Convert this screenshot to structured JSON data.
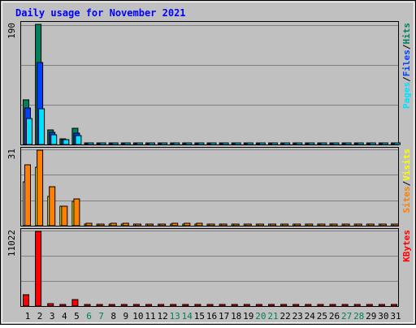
{
  "title": "Daily usage for November 2021",
  "colors": {
    "hits": "#00805c",
    "files": "#0040ff",
    "pages": "#00e0ff",
    "visits": "#ffff00",
    "sites": "#ff8000",
    "kbytes": "#ff0000",
    "weekend": "#00805c",
    "title": "#0000ff",
    "panel_bg": "#c0c0c0"
  },
  "chart_data": [
    {
      "type": "bar",
      "panel": "hits-files-pages",
      "ymax_label": "190",
      "ylim": [
        0,
        190
      ],
      "legend": [
        {
          "text": "Pages",
          "color_key": "pages"
        },
        {
          "text": "/",
          "color_key": "sep"
        },
        {
          "text": "Files",
          "color_key": "files"
        },
        {
          "text": "/",
          "color_key": "sep"
        },
        {
          "text": "Hits",
          "color_key": "hits"
        }
      ],
      "categories": [
        "1",
        "2",
        "3",
        "4",
        "5",
        "6",
        "7",
        "8",
        "9",
        "10",
        "11",
        "12",
        "13",
        "14",
        "15",
        "16",
        "17",
        "18",
        "19",
        "20",
        "21",
        "22",
        "23",
        "24",
        "25",
        "26",
        "27",
        "28",
        "29",
        "30",
        "31"
      ],
      "series": [
        {
          "name": "Hits",
          "color_key": "hits",
          "values": [
            70,
            190,
            23,
            9,
            26,
            0,
            0,
            0,
            0,
            0,
            0,
            0,
            0,
            0,
            0,
            0,
            0,
            0,
            0,
            0,
            0,
            0,
            0,
            0,
            0,
            0,
            0,
            0,
            0,
            0,
            0
          ]
        },
        {
          "name": "Files",
          "color_key": "files",
          "values": [
            58,
            130,
            19,
            8,
            18,
            0,
            0,
            0,
            0,
            0,
            0,
            0,
            0,
            0,
            0,
            0,
            0,
            0,
            0,
            0,
            0,
            0,
            0,
            0,
            0,
            0,
            0,
            0,
            0,
            0,
            0
          ]
        },
        {
          "name": "Pages",
          "color_key": "pages",
          "values": [
            41,
            56,
            15,
            8,
            14,
            0,
            0,
            0,
            0,
            0,
            0,
            0,
            0,
            0,
            0,
            0,
            0,
            0,
            0,
            0,
            0,
            0,
            0,
            0,
            0,
            0,
            0,
            0,
            0,
            0,
            0
          ]
        }
      ]
    },
    {
      "type": "bar",
      "panel": "visits-sites",
      "ymax_label": "31",
      "ylim": [
        0,
        31
      ],
      "legend": [
        {
          "text": "Sites",
          "color_key": "sites"
        },
        {
          "text": "/",
          "color_key": "sep"
        },
        {
          "text": "Visits",
          "color_key": "visits"
        }
      ],
      "categories": [
        "1",
        "2",
        "3",
        "4",
        "5",
        "6",
        "7",
        "8",
        "9",
        "10",
        "11",
        "12",
        "13",
        "14",
        "15",
        "16",
        "17",
        "18",
        "19",
        "20",
        "21",
        "22",
        "23",
        "24",
        "25",
        "26",
        "27",
        "28",
        "29",
        "30",
        "31"
      ],
      "series": [
        {
          "name": "Visits",
          "color_key": "visits",
          "values": [
            18,
            24,
            12,
            8,
            10,
            0,
            0,
            0,
            0,
            0,
            0,
            0,
            0,
            0,
            0,
            0,
            0,
            0,
            0,
            0,
            0,
            0,
            0,
            0,
            0,
            0,
            0,
            0,
            0,
            0,
            0
          ]
        },
        {
          "name": "Sites",
          "color_key": "sites",
          "values": [
            25,
            31,
            16,
            8,
            11,
            1,
            0,
            1,
            1,
            0,
            0,
            0,
            1,
            1,
            1,
            0,
            0,
            0,
            0,
            0,
            0,
            0,
            0,
            0,
            0,
            0,
            0,
            0,
            0,
            0,
            0
          ]
        }
      ]
    },
    {
      "type": "bar",
      "panel": "kbytes",
      "ymax_label": "11022",
      "ylim": [
        0,
        11022
      ],
      "legend": [
        {
          "text": "KBytes",
          "color_key": "kbytes"
        }
      ],
      "categories": [
        "1",
        "2",
        "3",
        "4",
        "5",
        "6",
        "7",
        "8",
        "9",
        "10",
        "11",
        "12",
        "13",
        "14",
        "15",
        "16",
        "17",
        "18",
        "19",
        "20",
        "21",
        "22",
        "23",
        "24",
        "25",
        "26",
        "27",
        "28",
        "29",
        "30",
        "31"
      ],
      "series": [
        {
          "name": "KBytes",
          "color_key": "kbytes",
          "values": [
            1650,
            11022,
            380,
            0,
            960,
            0,
            0,
            0,
            0,
            0,
            0,
            0,
            0,
            0,
            0,
            0,
            0,
            0,
            0,
            0,
            0,
            0,
            0,
            0,
            0,
            0,
            0,
            0,
            0,
            0,
            0
          ]
        }
      ]
    }
  ],
  "x_axis": {
    "labels": [
      "1",
      "2",
      "3",
      "4",
      "5",
      "6",
      "7",
      "8",
      "9",
      "10",
      "11",
      "12",
      "13",
      "14",
      "15",
      "16",
      "17",
      "18",
      "19",
      "20",
      "21",
      "22",
      "23",
      "24",
      "25",
      "26",
      "27",
      "28",
      "29",
      "30",
      "31"
    ],
    "weekend": [
      "6",
      "7",
      "13",
      "14",
      "20",
      "21",
      "27",
      "28"
    ]
  }
}
